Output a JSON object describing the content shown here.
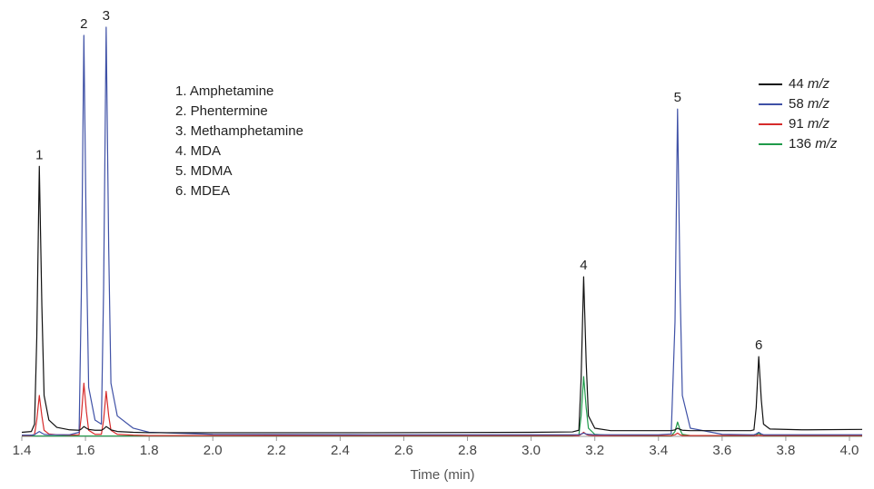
{
  "chart_data": {
    "type": "line",
    "x_label": "Time (min)",
    "x": [
      1.4,
      1.43,
      1.44,
      1.447,
      1.455,
      1.463,
      1.47,
      1.485,
      1.51,
      1.55,
      1.58,
      1.587,
      1.595,
      1.603,
      1.61,
      1.63,
      1.65,
      1.657,
      1.665,
      1.673,
      1.68,
      1.7,
      1.75,
      1.8,
      2.0,
      2.5,
      3.0,
      3.13,
      3.15,
      3.157,
      3.165,
      3.173,
      3.18,
      3.2,
      3.25,
      3.4,
      3.44,
      3.452,
      3.46,
      3.468,
      3.475,
      3.5,
      3.6,
      3.69,
      3.7,
      3.707,
      3.715,
      3.723,
      3.73,
      3.75,
      3.85,
      4.04
    ],
    "series": [
      {
        "name": "44 m/z",
        "color": "#111111",
        "values": [
          1,
          1.2,
          3,
          24,
          66,
          32,
          10,
          4,
          2.2,
          1.6,
          1.5,
          1.8,
          2.4,
          2,
          1.7,
          1.5,
          1.5,
          1.8,
          2.4,
          2,
          1.6,
          1.2,
          1,
          0.9,
          0.9,
          0.9,
          1,
          1.1,
          1.5,
          14,
          39,
          18,
          5,
          2,
          1.4,
          1.4,
          1.4,
          1.6,
          2,
          1.7,
          1.5,
          1.4,
          1.4,
          1.4,
          1.6,
          7,
          19.5,
          9,
          3,
          1.8,
          1.6,
          1.7
        ]
      },
      {
        "name": "58 m/z",
        "color": "#3f51a6",
        "values": [
          0.3,
          0.3,
          0.4,
          0.8,
          1.2,
          0.8,
          0.5,
          0.4,
          0.4,
          0.4,
          1,
          35,
          98,
          45,
          12,
          4,
          3,
          36,
          100,
          46,
          13,
          5,
          2,
          1,
          0.5,
          0.4,
          0.4,
          0.4,
          0.4,
          0.6,
          0.8,
          0.6,
          0.5,
          0.4,
          0.4,
          0.4,
          0.6,
          28,
          80,
          36,
          10,
          2,
          0.5,
          0.4,
          0.4,
          0.6,
          1,
          0.6,
          0.4,
          0.4,
          0.4,
          0.4
        ]
      },
      {
        "name": "91 m/z",
        "color": "#d62b2b",
        "values": [
          0.2,
          0.2,
          0.5,
          4,
          10,
          5,
          1.5,
          0.6,
          0.4,
          0.3,
          0.4,
          5,
          13,
          6,
          1.5,
          0.5,
          0.5,
          4,
          11,
          5,
          1.5,
          0.5,
          0.3,
          0.2,
          0.2,
          0.2,
          0.2,
          0.2,
          0.2,
          0.5,
          1,
          0.5,
          0.3,
          0.2,
          0.2,
          0.2,
          0.2,
          0.4,
          0.8,
          0.4,
          0.2,
          0.2,
          0.2,
          0.2,
          0.2,
          0.2,
          0.3,
          0.2,
          0.2,
          0.2,
          0.2,
          0.2
        ]
      },
      {
        "name": "136 m/z",
        "color": "#1f9a4a",
        "values": [
          0.1,
          0.1,
          0.1,
          0.1,
          0.1,
          0.1,
          0.1,
          0.1,
          0.1,
          0.1,
          0.1,
          0.1,
          0.1,
          0.1,
          0.1,
          0.1,
          0.1,
          0.1,
          0.1,
          0.1,
          0.1,
          0.1,
          0.1,
          0.1,
          0.1,
          0.1,
          0.1,
          0.1,
          0.3,
          5,
          14.6,
          7,
          2,
          0.5,
          0.2,
          0.1,
          0.1,
          1.2,
          3.5,
          1.6,
          0.5,
          0.2,
          0.1,
          0.1,
          0.1,
          0.3,
          0.8,
          0.3,
          0.1,
          0.1,
          0.1,
          0.1
        ]
      }
    ],
    "peaks": [
      {
        "label": "1",
        "x": 1.455
      },
      {
        "label": "2",
        "x": 1.595
      },
      {
        "label": "3",
        "x": 1.665
      },
      {
        "label": "4",
        "x": 3.165
      },
      {
        "label": "5",
        "x": 3.46
      },
      {
        "label": "6",
        "x": 3.715
      }
    ],
    "compounds": [
      "1. Amphetamine",
      "2. Phentermine",
      "3. Methamphetamine",
      "4. MDA",
      "5. MDMA",
      "6. MDEA"
    ],
    "xlim": [
      1.4,
      4.04
    ],
    "xticks": [
      1.4,
      1.6,
      1.8,
      {
        "value": 2,
        "label": "2.0"
      },
      2.2,
      2.4,
      2.6,
      2.8,
      {
        "value": 3,
        "label": "3.0"
      },
      3.2,
      3.4,
      3.6,
      3.8,
      {
        "value": 4,
        "label": "4.0"
      }
    ],
    "ylim": [
      0,
      100
    ]
  }
}
